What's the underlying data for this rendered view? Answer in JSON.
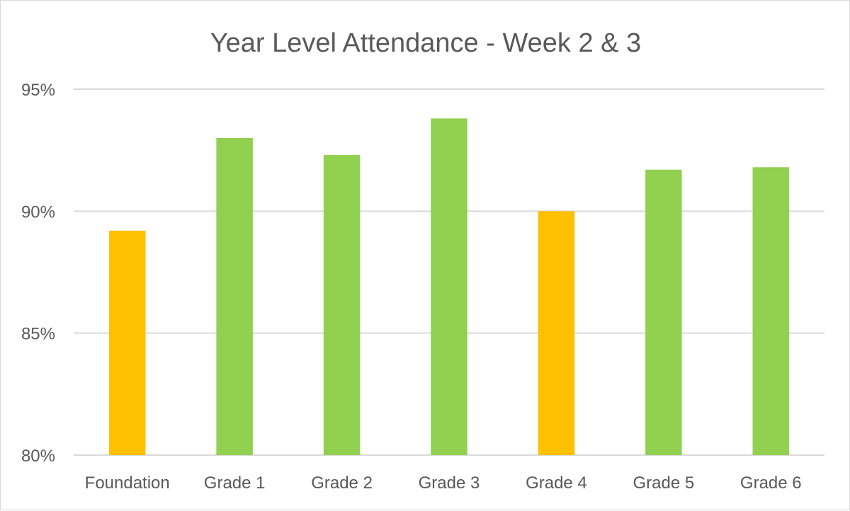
{
  "chart_data": {
    "type": "bar",
    "title": "Year Level Attendance - Week 2 & 3",
    "xlabel": "",
    "ylabel": "",
    "categories": [
      "Foundation",
      "Grade 1",
      "Grade 2",
      "Grade 3",
      "Grade 4",
      "Grade 5",
      "Grade 6"
    ],
    "values": [
      89.2,
      93.0,
      92.3,
      93.8,
      90.0,
      91.7,
      91.8
    ],
    "bar_colors": [
      "#ffc000",
      "#92d050",
      "#92d050",
      "#92d050",
      "#ffc000",
      "#92d050",
      "#92d050"
    ],
    "ylim": [
      80,
      95
    ],
    "yticks": [
      80,
      85,
      90,
      95
    ],
    "ytick_labels": [
      "80%",
      "85%",
      "90%",
      "95%"
    ],
    "grid": true,
    "legend": "none"
  }
}
